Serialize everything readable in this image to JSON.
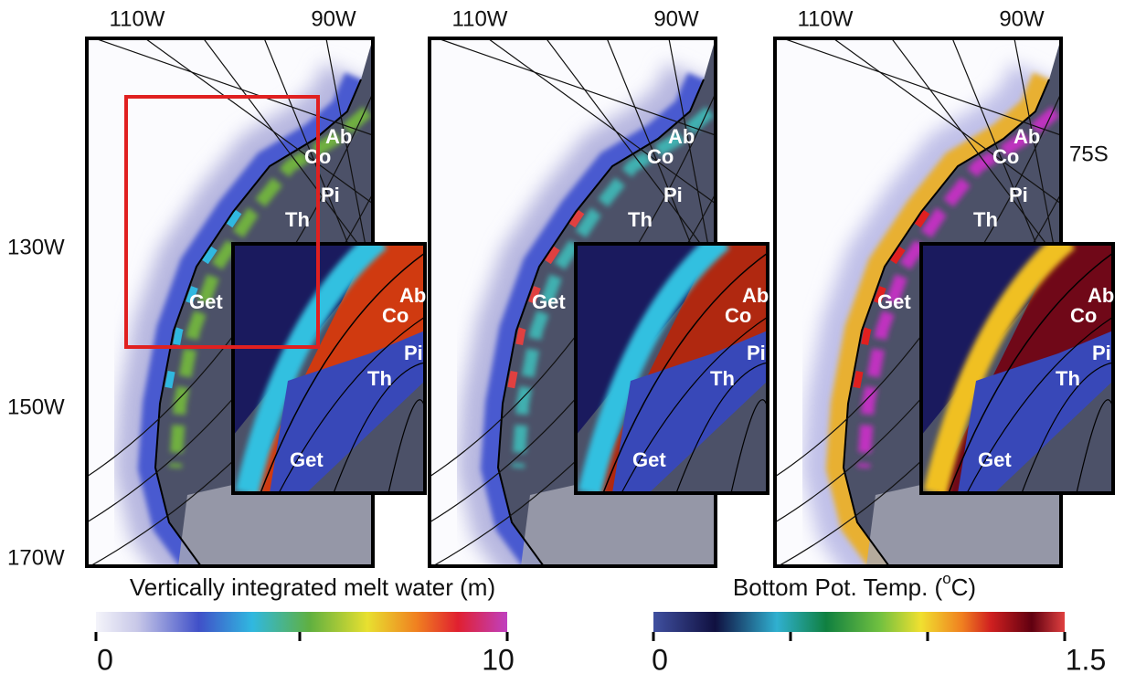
{
  "panels": [
    {
      "top_labels": [
        "110W",
        "90W"
      ],
      "map_labels": [
        "Ab",
        "Co",
        "Pi",
        "Th",
        "Get"
      ],
      "inset_labels": [
        "Ab",
        "Co",
        "Pi",
        "Th",
        "Get"
      ]
    },
    {
      "top_labels": [
        "110W",
        "90W"
      ],
      "map_labels": [
        "Ab",
        "Co",
        "Pi",
        "Th",
        "Get"
      ],
      "inset_labels": [
        "Ab",
        "Co",
        "Pi",
        "Th",
        "Get"
      ]
    },
    {
      "top_labels": [
        "110W",
        "90W"
      ],
      "map_labels": [
        "Ab",
        "Co",
        "Pi",
        "Th",
        "Get"
      ],
      "inset_labels": [
        "Ab",
        "Co",
        "Pi",
        "Th",
        "Get"
      ]
    }
  ],
  "left_labels": [
    "130W",
    "150W",
    "170W"
  ],
  "right_label": "75S",
  "colorbars": [
    {
      "title": "Vertically integrated melt water (m)",
      "ticks": [
        0,
        10
      ]
    },
    {
      "title": "Bottom Pot. Temp. (",
      "title_sup": "o",
      "title_end": "C)",
      "ticks": [
        0,
        1.5
      ]
    }
  ]
}
